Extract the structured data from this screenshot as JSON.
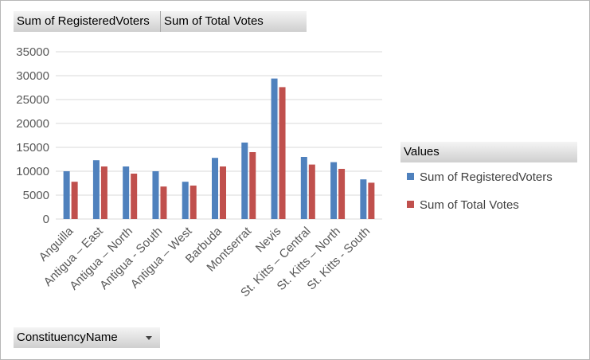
{
  "field_buttons": {
    "registered": "Sum of RegisteredVoters",
    "total": "Sum of Total Votes",
    "constituency": "ConstituencyName",
    "values": "Values"
  },
  "colors": {
    "registered": "#4f81bd",
    "total": "#c0504d",
    "grid": "#d9d9d9",
    "text": "#595959"
  },
  "chart_data": {
    "type": "bar",
    "categories": [
      "Anguilla",
      "Antigua – East",
      "Antigua – North",
      "Antigua - South",
      "Antigua – West",
      "Barbuda",
      "Montserrat",
      "Nevis",
      "St. Kitts – Central",
      "St. Kitts – North",
      "St. Kitts - South"
    ],
    "series": [
      {
        "name": "Sum of RegisteredVoters",
        "values": [
          10000,
          12300,
          11000,
          10000,
          7800,
          12800,
          16000,
          29400,
          13000,
          11900,
          8300
        ]
      },
      {
        "name": "Sum of Total Votes",
        "values": [
          7800,
          11000,
          9500,
          6800,
          7000,
          11000,
          14000,
          27600,
          11400,
          10500,
          7600
        ]
      }
    ],
    "y_ticks": [
      "0",
      "5000",
      "10000",
      "15000",
      "20000",
      "25000",
      "30000",
      "35000"
    ],
    "ylim": [
      0,
      35000
    ],
    "grid": true,
    "legend_title": "Values",
    "legend_position": "right"
  }
}
